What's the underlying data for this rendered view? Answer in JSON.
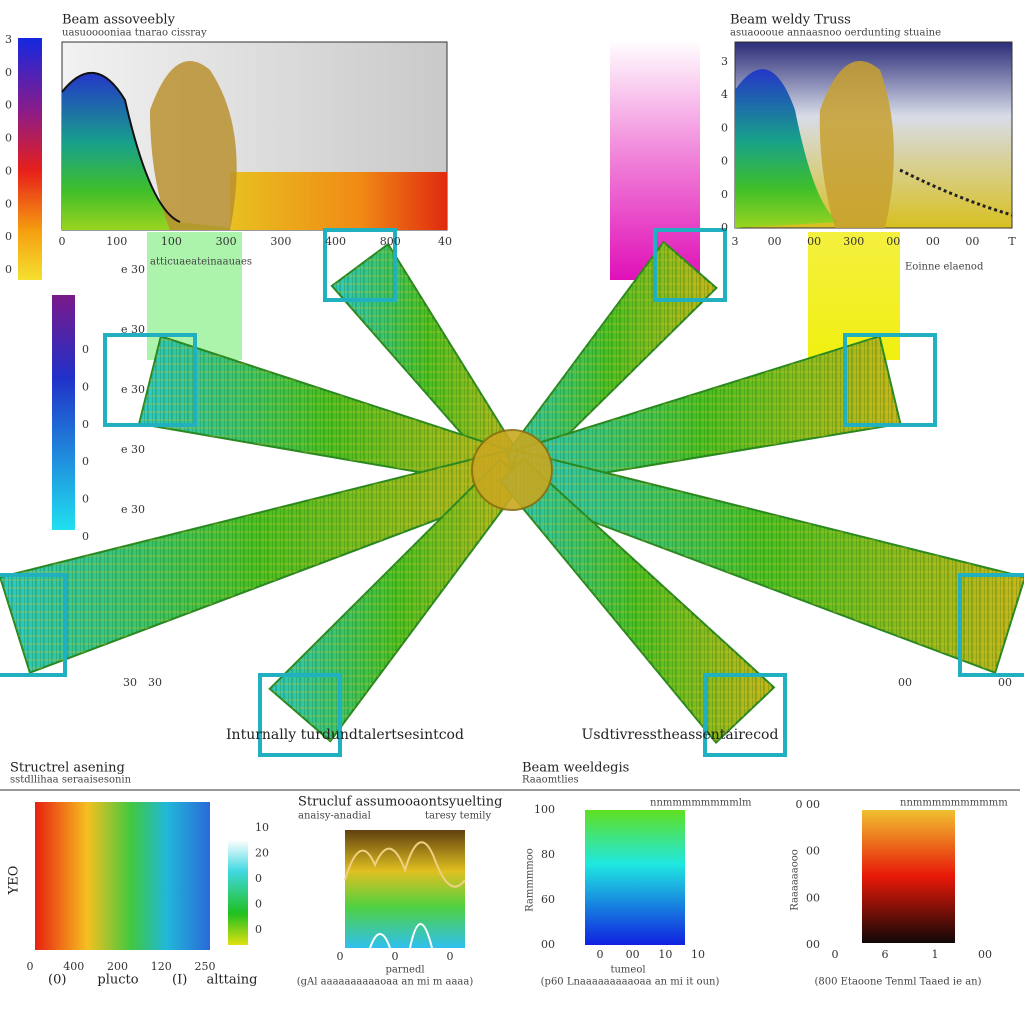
{
  "top_left": {
    "title": "Beam assoveebly",
    "subtitle": "uasuooooniaa tnarao cissray",
    "x_ticks": [
      "0",
      "100",
      "100",
      "300",
      "300",
      "400",
      "800",
      "40"
    ],
    "y_ticks": [
      "3",
      "0",
      "0",
      "0",
      "0",
      "0",
      "0",
      "0"
    ],
    "side_labels": [
      "e 30",
      "e 30",
      "e 30",
      "e 30",
      "e 30"
    ],
    "note": "atticuaeateinaauaes"
  },
  "top_right": {
    "title": "Beam weldy Truss",
    "subtitle": "asuaoooue annaasnoo oerdunting stuaine",
    "x_ticks": [
      "3",
      "00",
      "00",
      "300",
      "00",
      "00",
      "00",
      "T"
    ],
    "y_ticks": [
      "3",
      "4",
      "0",
      "0",
      "0",
      "0"
    ],
    "note": "Eoinne elaenod"
  },
  "left_colorbar_ticks": [
    "0",
    "0",
    "0",
    "0",
    "0",
    "0"
  ],
  "center": {
    "left_label": "Inturnally turdundtalertsesintcod",
    "right_label": "Usdtivresstheassentairecod",
    "left_ticks": [
      "30",
      "30"
    ],
    "right_ticks": [
      "00",
      "00"
    ]
  },
  "bottom": {
    "section_left": {
      "title": "Structrel asening",
      "subtitle": "sstdllihaa seraaisesonin"
    },
    "section_right": {
      "title": "Beam weeldegis",
      "subtitle": "Raaomtlies"
    },
    "panel1": {
      "y_label": "YEO",
      "x_ticks": [
        "0",
        "400",
        "200",
        "120",
        "250"
      ],
      "cbar_ticks": [
        "10",
        "20",
        "0",
        "0",
        "0"
      ],
      "x_label": "plucto",
      "cbar_label": "alttaing",
      "footer": [
        "(0)",
        "(I)"
      ]
    },
    "panel2": {
      "title": "Strucluf assumooaontsyuelting",
      "subtitle": "anaisy-anadial",
      "right_title": "taresy temily",
      "x_ticks": [
        "0",
        "0",
        "0"
      ],
      "x_label": "parnedl",
      "footer": "(gAl aaaaaaaaaaoaa an mi m aaaa)"
    },
    "panel3": {
      "y_ticks": [
        "100",
        "80",
        "60",
        "00"
      ],
      "top_label": "nnmmmmmmmmlm",
      "x_ticks": [
        "0",
        "00",
        "10",
        "10"
      ],
      "x_label": "tumeol",
      "y_label": "Rammmmoo",
      "footer": "(p60 Lnaaaaaaaaaoaa an mi it oun)"
    },
    "panel4": {
      "y_ticks": [
        "0 00",
        "00",
        "00",
        "00"
      ],
      "top_label": "nnmmmmmmmmmm",
      "x_ticks": [
        "0",
        "6",
        "1",
        "00"
      ],
      "y_label": "Raaaaaaooo",
      "footer": "(800 Etaoone Tenml Taaed ie an)"
    }
  }
}
